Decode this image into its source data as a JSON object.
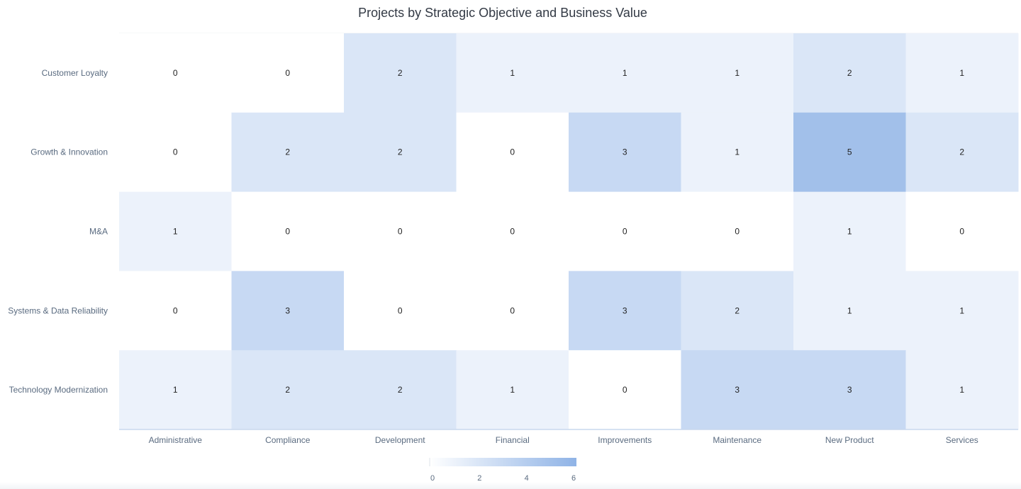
{
  "chart_data": {
    "type": "heatmap",
    "title": "Projects by Strategic Objective and Business Value",
    "rows": [
      "Customer Loyalty",
      "Growth & Innovation",
      "M&A",
      "Systems & Data Reliability",
      "Technology Modernization"
    ],
    "columns": [
      "Administrative",
      "Compliance",
      "Development",
      "Financial",
      "Improvements",
      "Maintenance",
      "New Product",
      "Services"
    ],
    "values": [
      [
        0,
        0,
        2,
        1,
        1,
        1,
        2,
        1
      ],
      [
        0,
        2,
        2,
        0,
        3,
        1,
        5,
        2
      ],
      [
        1,
        0,
        0,
        0,
        0,
        0,
        1,
        0
      ],
      [
        0,
        3,
        0,
        0,
        3,
        2,
        1,
        1
      ],
      [
        1,
        2,
        2,
        1,
        0,
        3,
        3,
        1
      ]
    ],
    "color_scale": {
      "min": 0,
      "max": 6,
      "low_color": "#ffffff",
      "high_color": "#8fb3e6"
    },
    "legend": {
      "position": "bottom-center",
      "ticks": [
        "0",
        "2",
        "4",
        "6"
      ]
    }
  }
}
